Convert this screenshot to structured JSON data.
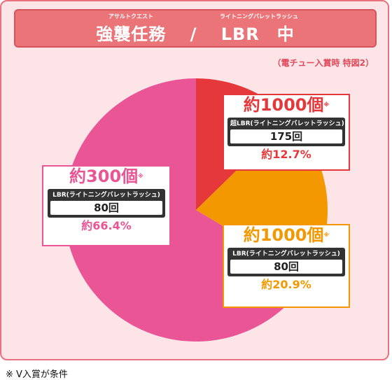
{
  "header": {
    "title": "強襲任務　 /　 LBR　中",
    "ruby_left": "アサルトクエスト",
    "ruby_right": "ライトニングバレットラッシュ"
  },
  "note_top": "（電チュー入賞時 特図2）",
  "footnote": "※ V入賞が条件",
  "chart_data": {
    "type": "pie",
    "start_angle_deg": 0,
    "direction": "clockwise",
    "slices": [
      {
        "headline": "約1000個",
        "headline_mark": "※",
        "mode": "超LBR(ライトニングバレットラッシュ)",
        "count": "175回",
        "percent_label": "約12.7%",
        "value": 12.7,
        "color": "#e5383a"
      },
      {
        "headline": "約1000個",
        "headline_mark": "※",
        "mode": "LBR(ライトニングバレットラッシュ)",
        "count": "80回",
        "percent_label": "約20.9%",
        "value": 20.9,
        "color": "#f39800"
      },
      {
        "headline": "約300個",
        "headline_mark": "※",
        "mode": "LBR(ライトニングバレットラッシュ)",
        "count": "80回",
        "percent_label": "約66.4%",
        "value": 66.4,
        "color": "#e95595"
      }
    ]
  }
}
